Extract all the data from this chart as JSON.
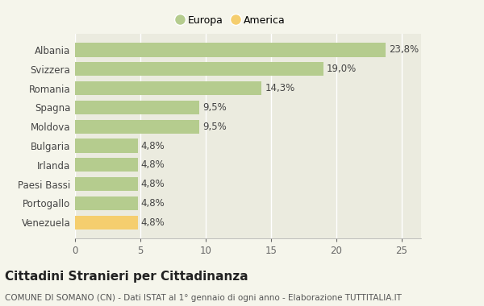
{
  "categories": [
    "Venezuela",
    "Portogallo",
    "Paesi Bassi",
    "Irlanda",
    "Bulgaria",
    "Moldova",
    "Spagna",
    "Romania",
    "Svizzera",
    "Albania"
  ],
  "values": [
    4.8,
    4.8,
    4.8,
    4.8,
    4.8,
    9.5,
    9.5,
    14.3,
    19.0,
    23.8
  ],
  "labels": [
    "4,8%",
    "4,8%",
    "4,8%",
    "4,8%",
    "4,8%",
    "9,5%",
    "9,5%",
    "14,3%",
    "19,0%",
    "23,8%"
  ],
  "colors": [
    "#f5ce6e",
    "#b5cc8e",
    "#b5cc8e",
    "#b5cc8e",
    "#b5cc8e",
    "#b5cc8e",
    "#b5cc8e",
    "#b5cc8e",
    "#b5cc8e",
    "#b5cc8e"
  ],
  "legend_europa_color": "#b5cc8e",
  "legend_america_color": "#f5ce6e",
  "xlim": [
    0,
    26.5
  ],
  "xticks": [
    0,
    5,
    10,
    15,
    20,
    25
  ],
  "title": "Cittadini Stranieri per Cittadinanza",
  "subtitle": "COMUNE DI SOMANO (CN) - Dati ISTAT al 1° gennaio di ogni anno - Elaborazione TUTTITALIA.IT",
  "bg_color": "#f5f5eb",
  "plot_bg_color": "#ebebdf",
  "label_fontsize": 8.5,
  "title_fontsize": 11,
  "subtitle_fontsize": 7.5,
  "ytick_fontsize": 8.5,
  "xtick_fontsize": 8.5
}
